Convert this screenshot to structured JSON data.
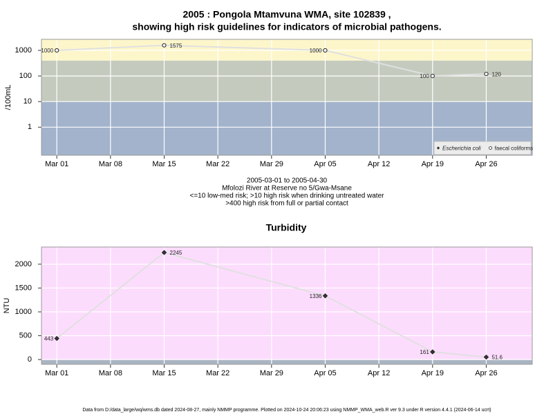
{
  "chart_data": [
    {
      "type": "line",
      "title": [
        "2005 : Pongola Mtamvuna WMA, site 102839 ,",
        "showing high risk guidelines for indicators of microbial pathogens."
      ],
      "subtitle": [
        "2005-03-01 to 2005-04-30",
        "Mfolozi River at Reserve no 5/Gwa-Msane",
        "<=10 low-med risk; >10 high risk when drinking untreated water",
        ">400 high risk from full or partial contact"
      ],
      "y_label": "/100mL",
      "log_y": true,
      "x": [
        "2005-03-01",
        "2005-03-15",
        "2005-04-05",
        "2005-04-19",
        "2005-04-26"
      ],
      "xlim": [
        "2005-02-27",
        "2005-05-02"
      ],
      "xticks": [
        {
          "value": "2005-03-01",
          "label": "Mar 01"
        },
        {
          "value": "2005-03-08",
          "label": "Mar 08"
        },
        {
          "value": "2005-03-15",
          "label": "Mar 15"
        },
        {
          "value": "2005-03-22",
          "label": "Mar 22"
        },
        {
          "value": "2005-03-29",
          "label": "Mar 29"
        },
        {
          "value": "2005-04-05",
          "label": "Apr 05"
        },
        {
          "value": "2005-04-12",
          "label": "Apr 12"
        },
        {
          "value": "2005-04-19",
          "label": "Apr 19"
        },
        {
          "value": "2005-04-26",
          "label": "Apr 26"
        }
      ],
      "ylim": [
        0.08,
        2700
      ],
      "yticks": [
        1,
        10,
        100,
        1000
      ],
      "grid": true,
      "bands": [
        {
          "to": 10,
          "color": "#a3b3cc"
        },
        {
          "from": 10,
          "to": 400,
          "color": "#c4cbbe"
        },
        {
          "from": 400,
          "color": "#fdf6cb"
        }
      ],
      "legend": "bottom right",
      "series": [
        {
          "name": "Escherichia coli",
          "color": "#e0e0e0",
          "marker": "diamond",
          "values": [
            null,
            null,
            null,
            null,
            null
          ]
        },
        {
          "name": "faecal coliforms",
          "color": "#e0e0e0",
          "marker": "circle",
          "values": [
            1000,
            1575,
            1000,
            100,
            120
          ]
        }
      ]
    },
    {
      "type": "line",
      "title": "Turbidity",
      "y_label": "NTU",
      "x": [
        "2005-03-01",
        "2005-03-15",
        "2005-04-05",
        "2005-04-19",
        "2005-04-26"
      ],
      "xlim": [
        "2005-02-27",
        "2005-05-02"
      ],
      "xticks": [
        {
          "value": "2005-03-01",
          "label": "Mar 01"
        },
        {
          "value": "2005-03-08",
          "label": "Mar 08"
        },
        {
          "value": "2005-03-15",
          "label": "Mar 15"
        },
        {
          "value": "2005-03-22",
          "label": "Mar 22"
        },
        {
          "value": "2005-03-29",
          "label": "Mar 29"
        },
        {
          "value": "2005-04-05",
          "label": "Apr 05"
        },
        {
          "value": "2005-04-12",
          "label": "Apr 12"
        },
        {
          "value": "2005-04-19",
          "label": "Apr 19"
        },
        {
          "value": "2005-04-26",
          "label": "Apr 26"
        }
      ],
      "ylim": [
        -100,
        2360
      ],
      "yticks": [
        0,
        500,
        1000,
        1500,
        2000
      ],
      "grid": true,
      "bands": [
        {
          "to": 0,
          "color": "#aab4c3"
        },
        {
          "from": 0,
          "color": "#fcdcfc"
        }
      ],
      "values": [
        443,
        2245,
        1336,
        161,
        51.6
      ],
      "color": "#e0e0e0",
      "marker": "diamond"
    }
  ],
  "footer": "Data from D:/data_large/wq/wms.db dated 2024-08-27, mainly NMMP programme. Plotted on 2024-10-24 20:06:23 using NMMP_WMA_web.R ver 9.3 under R version 4.4.1 (2024-06-14 ucrt)"
}
